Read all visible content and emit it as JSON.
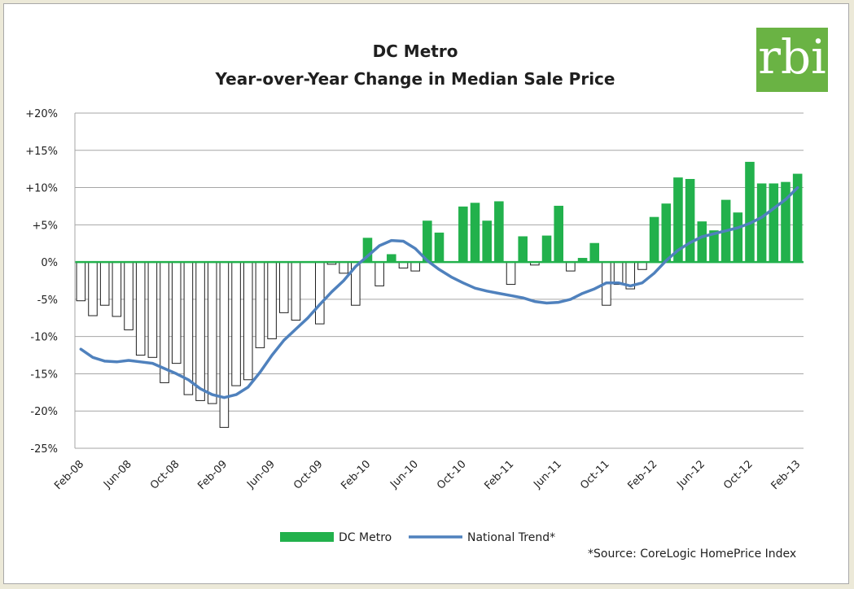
{
  "logo": {
    "text": "rbi",
    "color": "#6ab344"
  },
  "source_note": "*Source: CoreLogic HomePrice Index",
  "chart_data": {
    "type": "bar",
    "title": "DC Metro",
    "subtitle": "Year-over-Year Change in Median Sale Price",
    "xlabel": "",
    "ylabel": "",
    "ylim": [
      -25,
      20
    ],
    "yticks": [
      -25,
      -20,
      -15,
      -10,
      -5,
      0,
      5,
      10,
      15,
      20
    ],
    "ytick_labels": [
      "-25%",
      "-20%",
      "-15%",
      "-10%",
      "-5%",
      "0%",
      "+5%",
      "+10%",
      "+15%",
      "+20%"
    ],
    "grid": true,
    "legend_position": "bottom-center",
    "categories": [
      "Feb-08",
      "Mar-08",
      "Apr-08",
      "May-08",
      "Jun-08",
      "Jul-08",
      "Aug-08",
      "Sep-08",
      "Oct-08",
      "Nov-08",
      "Dec-08",
      "Jan-09",
      "Feb-09",
      "Mar-09",
      "Apr-09",
      "May-09",
      "Jun-09",
      "Jul-09",
      "Aug-09",
      "Sep-09",
      "Oct-09",
      "Nov-09",
      "Dec-09",
      "Jan-10",
      "Feb-10",
      "Mar-10",
      "Apr-10",
      "May-10",
      "Jun-10",
      "Jul-10",
      "Aug-10",
      "Sep-10",
      "Oct-10",
      "Nov-10",
      "Dec-10",
      "Jan-11",
      "Feb-11",
      "Mar-11",
      "Apr-11",
      "May-11",
      "Jun-11",
      "Jul-11",
      "Aug-11",
      "Sep-11",
      "Oct-11",
      "Nov-11",
      "Dec-11",
      "Jan-12",
      "Feb-12",
      "Mar-12",
      "Apr-12",
      "May-12",
      "Jun-12",
      "Jul-12",
      "Aug-12",
      "Sep-12",
      "Oct-12",
      "Nov-12",
      "Dec-12",
      "Jan-13",
      "Feb-13"
    ],
    "xtick_labels": [
      "Feb-08",
      "Jun-08",
      "Oct-08",
      "Feb-09",
      "Jun-09",
      "Oct-09",
      "Feb-10",
      "Jun-10",
      "Oct-10",
      "Feb-11",
      "Jun-11",
      "Oct-11",
      "Feb-12",
      "Jun-12",
      "Oct-12",
      "Feb-13"
    ],
    "series": [
      {
        "name": "DC Metro",
        "type": "bar",
        "positive_color": "#22b14c",
        "negative_color": "#ffffff",
        "values": [
          -5.2,
          -7.2,
          -5.8,
          -7.3,
          -9.1,
          -12.5,
          -12.8,
          -16.2,
          -13.6,
          -17.8,
          -18.6,
          -19.0,
          -22.2,
          -16.6,
          -15.8,
          -11.5,
          -10.3,
          -6.8,
          -7.8,
          0,
          -8.3,
          -0.3,
          -1.5,
          -5.8,
          3.2,
          -3.2,
          1.0,
          -0.8,
          -1.2,
          5.5,
          3.9,
          0,
          7.4,
          7.9,
          5.5,
          8.1,
          -3.0,
          3.4,
          -0.4,
          3.5,
          7.5,
          -1.2,
          0.5,
          2.5,
          -5.8,
          -3.0,
          -3.6,
          -1.0,
          6.0,
          7.8,
          11.3,
          11.1,
          5.4,
          4.2,
          8.3,
          6.6,
          13.4,
          10.5,
          10.5,
          10.7,
          11.8
        ]
      },
      {
        "name": "National Trend*",
        "type": "line",
        "color": "#4f81bd",
        "values": [
          -11.7,
          -12.8,
          -13.3,
          -13.4,
          -13.2,
          -13.4,
          -13.6,
          -14.3,
          -15.0,
          -15.8,
          -17.0,
          -17.8,
          -18.2,
          -17.8,
          -16.8,
          -14.8,
          -12.5,
          -10.5,
          -9.0,
          -7.5,
          -5.7,
          -4.0,
          -2.5,
          -0.6,
          0.8,
          2.2,
          2.9,
          2.8,
          1.8,
          0.2,
          -1.0,
          -2.0,
          -2.8,
          -3.5,
          -3.9,
          -4.2,
          -4.5,
          -4.8,
          -5.3,
          -5.5,
          -5.4,
          -5.0,
          -4.2,
          -3.6,
          -2.8,
          -2.8,
          -3.2,
          -2.8,
          -1.5,
          0.2,
          1.6,
          2.6,
          3.4,
          3.8,
          4.2,
          4.6,
          5.2,
          6.0,
          7.2,
          8.4,
          10.0
        ]
      }
    ]
  }
}
